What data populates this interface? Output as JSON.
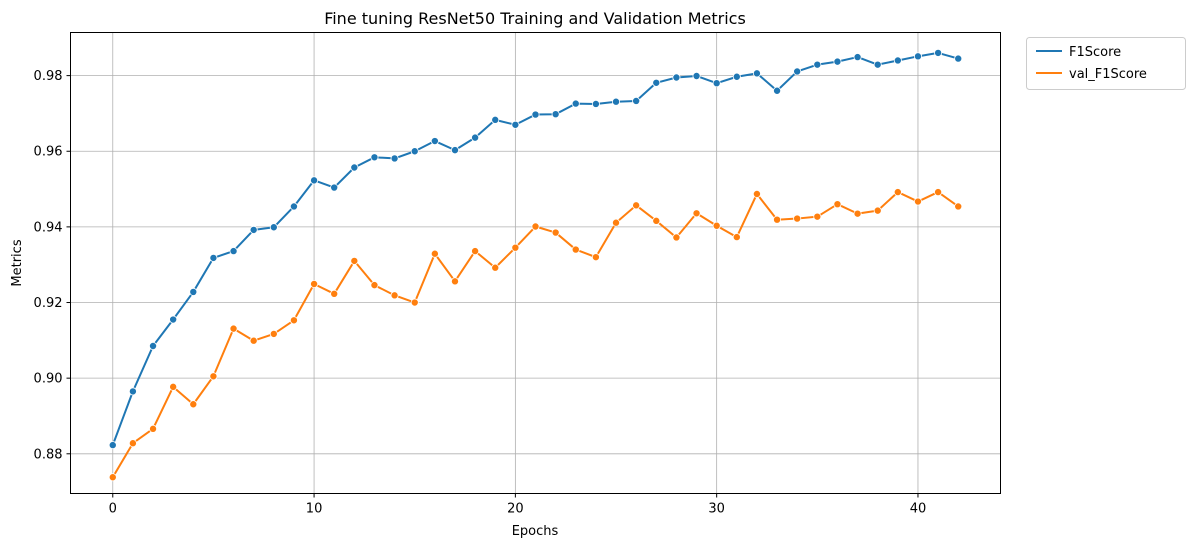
{
  "chart_data": {
    "type": "line",
    "title": "Fine tuning ResNet50 Training and Validation Metrics",
    "xlabel": "Epochs",
    "ylabel": "Metrics",
    "xlim": [
      -2.1,
      44.1
    ],
    "ylim": [
      0.8695,
      0.9914
    ],
    "xticks": [
      0,
      10,
      20,
      30,
      40
    ],
    "yticks": [
      0.88,
      0.9,
      0.92,
      0.94,
      0.96,
      0.98
    ],
    "xtick_labels": [
      "0",
      "10",
      "20",
      "30",
      "40"
    ],
    "ytick_labels": [
      "0.88",
      "0.90",
      "0.92",
      "0.94",
      "0.96",
      "0.98"
    ],
    "grid": true,
    "legend_position": "outside-top-right",
    "x": [
      0,
      1,
      2,
      3,
      4,
      5,
      6,
      7,
      8,
      9,
      10,
      11,
      12,
      13,
      14,
      15,
      16,
      17,
      18,
      19,
      20,
      21,
      22,
      23,
      24,
      25,
      26,
      27,
      28,
      29,
      30,
      31,
      32,
      33,
      34,
      35,
      36,
      37,
      38,
      39,
      40,
      41,
      42
    ],
    "series": [
      {
        "name": "F1Score",
        "color": "#1f77b4",
        "values": [
          0.8823,
          0.8965,
          0.9085,
          0.9155,
          0.9228,
          0.9318,
          0.9336,
          0.9392,
          0.9399,
          0.9454,
          0.9523,
          0.9504,
          0.9557,
          0.9584,
          0.9581,
          0.96,
          0.9627,
          0.9603,
          0.9636,
          0.9683,
          0.967,
          0.9697,
          0.9698,
          0.9726,
          0.9725,
          0.9731,
          0.9733,
          0.9781,
          0.9795,
          0.9799,
          0.978,
          0.9797,
          0.9806,
          0.976,
          0.9811,
          0.9829,
          0.9837,
          0.9849,
          0.9829,
          0.984,
          0.9851,
          0.986,
          0.9845
        ]
      },
      {
        "name": "val_F1Score",
        "color": "#ff7f0e",
        "values": [
          0.8738,
          0.8828,
          0.8866,
          0.8977,
          0.8931,
          0.9005,
          0.9131,
          0.9099,
          0.9117,
          0.9153,
          0.9249,
          0.9223,
          0.931,
          0.9246,
          0.9219,
          0.92,
          0.9329,
          0.9256,
          0.9336,
          0.9292,
          0.9345,
          0.9401,
          0.9385,
          0.934,
          0.932,
          0.9411,
          0.9457,
          0.9416,
          0.9372,
          0.9436,
          0.9403,
          0.9373,
          0.9487,
          0.9419,
          0.9422,
          0.9427,
          0.946,
          0.9435,
          0.9443,
          0.9492,
          0.9467,
          0.9492,
          0.9454
        ]
      }
    ]
  }
}
